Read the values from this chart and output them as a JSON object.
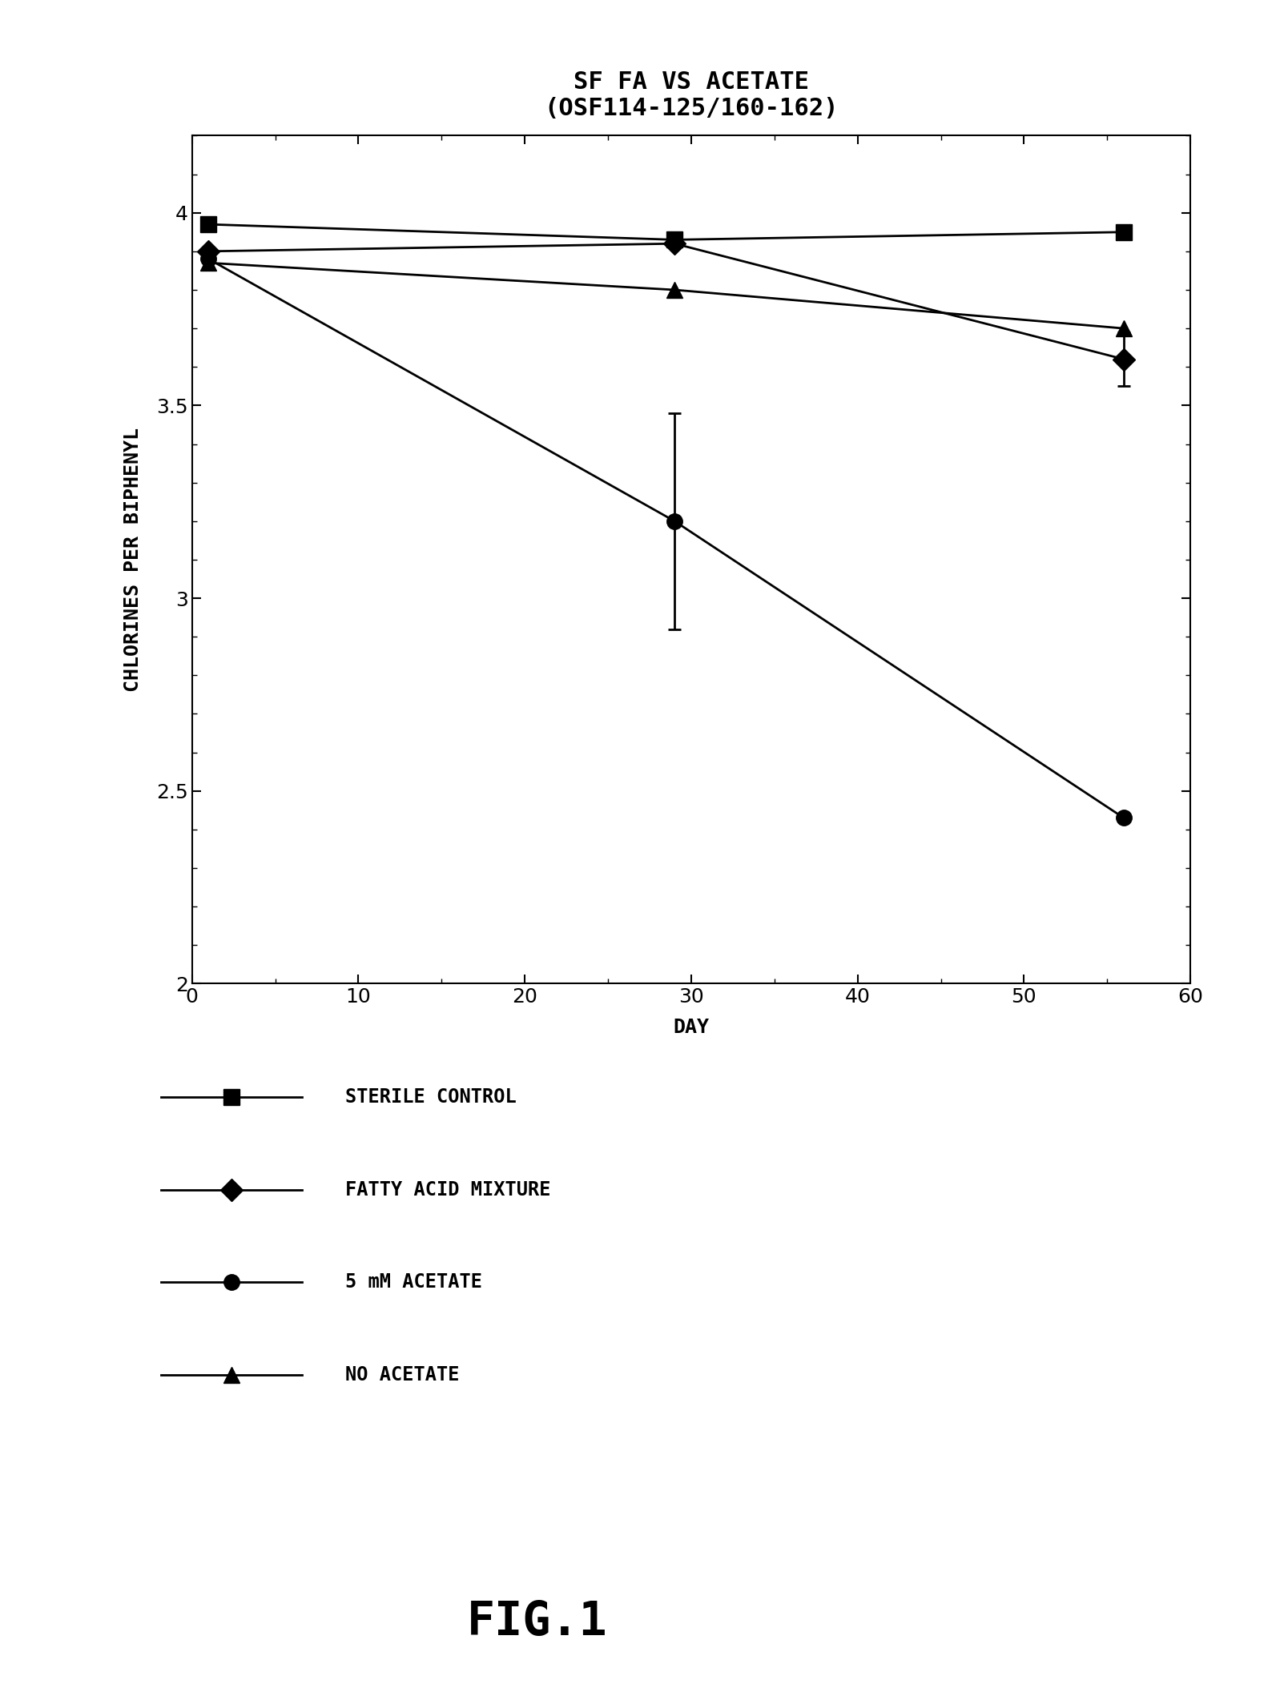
{
  "title_line1": "SF FA VS ACETATE",
  "title_line2": "(OSF114-125/160-162)",
  "xlabel": "DAY",
  "ylabel": "CHLORINES PER BIPHENYL",
  "fig_label": "FIG.1",
  "xlim": [
    0,
    60
  ],
  "ylim": [
    2.0,
    4.2
  ],
  "xticks": [
    0,
    10,
    20,
    30,
    40,
    50,
    60
  ],
  "yticks": [
    2.0,
    2.5,
    3.0,
    3.5,
    4.0
  ],
  "series": {
    "sterile_control": {
      "x": [
        1,
        29,
        56
      ],
      "y": [
        3.97,
        3.93,
        3.95
      ],
      "marker": "s",
      "label": "STERILE CONTROL",
      "yerr": [
        null,
        null,
        null
      ]
    },
    "fatty_acid": {
      "x": [
        1,
        29,
        56
      ],
      "y": [
        3.9,
        3.92,
        3.62
      ],
      "marker": "D",
      "label": "FATTY ACID MIXTURE",
      "yerr": [
        null,
        null,
        0.07
      ]
    },
    "acetate_5mm": {
      "x": [
        1,
        29,
        56
      ],
      "y": [
        3.88,
        3.2,
        2.43
      ],
      "marker": "o",
      "label": "5 mM ACETATE",
      "yerr": [
        null,
        0.28,
        null
      ]
    },
    "no_acetate": {
      "x": [
        1,
        29,
        56
      ],
      "y": [
        3.87,
        3.8,
        3.7
      ],
      "marker": "^",
      "label": "NO ACETATE",
      "yerr": [
        null,
        null,
        null
      ]
    }
  },
  "marker_size": 14,
  "linewidth": 2.0,
  "title_fontsize": 22,
  "label_fontsize": 18,
  "tick_fontsize": 18,
  "legend_fontsize": 17,
  "fig_label_fontsize": 42
}
